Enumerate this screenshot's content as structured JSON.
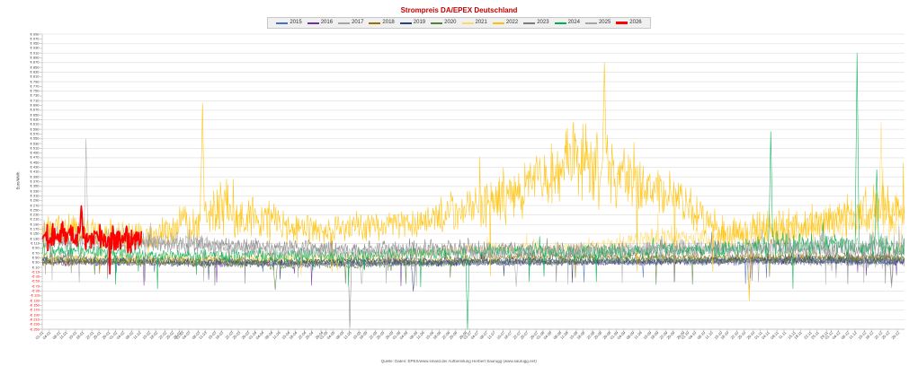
{
  "footer": {
    "source": "Quelle: Daten: EPEX/www.smard.de/ Aufbereitung Herbert Saurugg (www.saurugg.net)"
  },
  "chart_data": {
    "type": "line",
    "title": "Strompreis DA/EPEX Deutschland",
    "xlabel": "",
    "ylabel": "Euro/MWh",
    "ylim": [
      -250,
      990
    ],
    "ytick_step": 20,
    "gridline_step": 40,
    "grid": true,
    "legend_position": "top",
    "currency_prefix": "€ ",
    "positive_tick_color": "#404040",
    "negative_tick_color": "#ff0000",
    "x_labels": [
      "01.01",
      "04.01",
      "08.01",
      "11.01",
      "15.01",
      "18.01",
      "22.01",
      "25.01",
      "29.01",
      "01.02",
      "04.02",
      "08.02",
      "11.02",
      "15.02",
      "18.02",
      "22.02",
      "25.02",
      "28.02",
      "01.03",
      "04.03",
      "08.03",
      "11.03",
      "15.03",
      "18.03",
      "22.03",
      "25.03",
      "29.03",
      "01.04",
      "04.04",
      "08.04",
      "11.04",
      "15.04",
      "18.04",
      "22.04",
      "25.04",
      "29.04",
      "01.05",
      "04.05",
      "08.05",
      "11.05",
      "15.05",
      "18.05",
      "22.05",
      "25.05",
      "29.05",
      "01.06",
      "04.06",
      "08.06",
      "11.06",
      "15.06",
      "18.06",
      "22.06",
      "25.06",
      "29.06",
      "01.07",
      "04.07",
      "08.07",
      "11.07",
      "15.07",
      "18.07",
      "22.07",
      "25.07",
      "29.07",
      "01.08",
      "04.08",
      "08.08",
      "11.08",
      "15.08",
      "18.08",
      "22.08",
      "25.08",
      "29.08",
      "01.09",
      "04.09",
      "08.09",
      "11.09",
      "15.09",
      "18.09",
      "22.09",
      "25.09",
      "29.09",
      "01.10",
      "04.10",
      "08.10",
      "11.10",
      "15.10",
      "18.10",
      "22.10",
      "25.10",
      "29.10",
      "01.11",
      "04.11",
      "08.11",
      "11.11",
      "15.11",
      "18.11",
      "22.11",
      "25.11",
      "29.11",
      "01.12",
      "04.12",
      "08.12",
      "11.12",
      "15.12",
      "18.12",
      "22.12",
      "25.12",
      "29.12"
    ],
    "series": [
      {
        "name": "2015",
        "color": "#4472c4",
        "width": 0.55,
        "start": 0,
        "end": 1,
        "monthly_avg": [
          33,
          30,
          29,
          27,
          26,
          28,
          30,
          31,
          33,
          37,
          41,
          34
        ],
        "monthly_amp": [
          18,
          16,
          15,
          14,
          14,
          15,
          16,
          16,
          18,
          22,
          25,
          20
        ],
        "neg_prob": 0.004,
        "neg_depth": 60,
        "spikes": []
      },
      {
        "name": "2016",
        "color": "#7030a0",
        "width": 0.55,
        "start": 0,
        "end": 1,
        "monthly_avg": [
          29,
          25,
          24,
          23,
          25,
          27,
          29,
          29,
          32,
          36,
          41,
          37
        ],
        "monthly_amp": [
          17,
          15,
          14,
          13,
          14,
          15,
          15,
          15,
          17,
          21,
          25,
          23
        ],
        "neg_prob": 0.004,
        "neg_depth": 70,
        "spikes": []
      },
      {
        "name": "2017",
        "color": "#a5a5a5",
        "width": 0.55,
        "start": 0,
        "end": 1,
        "monthly_avg": [
          41,
          37,
          33,
          30,
          29,
          31,
          33,
          32,
          34,
          36,
          40,
          32
        ],
        "monthly_amp": [
          26,
          20,
          18,
          16,
          15,
          16,
          17,
          17,
          19,
          24,
          28,
          30
        ],
        "neg_prob": 0.004,
        "neg_depth": 60,
        "spikes": [
          {
            "x": 0.82,
            "v": -83
          },
          {
            "x": 0.985,
            "v": -76
          }
        ]
      },
      {
        "name": "2018",
        "color": "#997300",
        "width": 0.55,
        "start": 0,
        "end": 1,
        "monthly_avg": [
          33,
          38,
          40,
          36,
          38,
          43,
          51,
          56,
          54,
          53,
          56,
          51
        ],
        "monthly_amp": [
          20,
          22,
          20,
          18,
          18,
          20,
          22,
          22,
          22,
          24,
          26,
          24
        ],
        "neg_prob": 0.003,
        "neg_depth": 40,
        "spikes": []
      },
      {
        "name": "2019",
        "color": "#264478",
        "width": 0.55,
        "start": 0,
        "end": 1,
        "monthly_avg": [
          46,
          43,
          36,
          34,
          37,
          33,
          39,
          37,
          36,
          39,
          43,
          34
        ],
        "monthly_amp": [
          25,
          22,
          20,
          18,
          20,
          22,
          20,
          18,
          18,
          20,
          24,
          22
        ],
        "neg_prob": 0.004,
        "neg_depth": 60,
        "spikes": [
          {
            "x": 0.43,
            "v": -90
          }
        ]
      },
      {
        "name": "2020",
        "color": "#538135",
        "width": 0.55,
        "start": 0,
        "end": 1,
        "monthly_avg": [
          39,
          31,
          26,
          19,
          19,
          27,
          34,
          37,
          43,
          37,
          41,
          45
        ],
        "monthly_amp": [
          22,
          20,
          22,
          24,
          20,
          18,
          18,
          20,
          22,
          22,
          24,
          26
        ],
        "neg_prob": 0.005,
        "neg_depth": 70,
        "spikes": [
          {
            "x": 0.27,
            "v": -84
          }
        ]
      },
      {
        "name": "2021",
        "color": "#ffd966",
        "width": 0.55,
        "start": 0,
        "end": 1,
        "monthly_avg": [
          53,
          49,
          48,
          53,
          54,
          75,
          89,
          91,
          129,
          139,
          167,
          222
        ],
        "monthly_amp": [
          26,
          25,
          22,
          24,
          24,
          30,
          36,
          36,
          56,
          62,
          72,
          112
        ],
        "neg_prob": 0.001,
        "neg_depth": 30,
        "spikes": [
          {
            "x": 0.973,
            "v": 620
          },
          {
            "x": 0.995,
            "v": 60
          }
        ]
      },
      {
        "name": "2022",
        "color": "#ffc000",
        "width": 0.6,
        "start": 0,
        "end": 1,
        "monthly_avg": [
          168,
          129,
          253,
          166,
          179,
          219,
          316,
          466,
          347,
          153,
          178,
          252
        ],
        "monthly_amp": [
          92,
          72,
          162,
          72,
          72,
          92,
          132,
          202,
          152,
          92,
          92,
          122
        ],
        "neg_prob": 0.001,
        "neg_depth": 40,
        "spikes": [
          {
            "x": 0.186,
            "v": 700
          },
          {
            "x": 0.652,
            "v": 870
          },
          {
            "x": 0.82,
            "v": -130
          }
        ]
      },
      {
        "name": "2023",
        "color": "#7b7b7b",
        "width": 0.55,
        "start": 0,
        "end": 1,
        "monthly_avg": [
          118,
          110,
          100,
          95,
          88,
          95,
          81,
          79,
          86,
          89,
          93,
          71
        ],
        "monthly_amp": [
          46,
          40,
          40,
          36,
          36,
          46,
          52,
          40,
          40,
          40,
          46,
          52
        ],
        "neg_prob": 0.006,
        "neg_depth": 70,
        "spikes": [
          {
            "x": 0.357,
            "v": -245
          },
          {
            "x": 0.985,
            "v": -60
          }
        ]
      },
      {
        "name": "2024",
        "color": "#00b050",
        "width": 0.6,
        "start": 0,
        "end": 1,
        "monthly_avg": [
          79,
          63,
          61,
          56,
          61,
          71,
          76,
          73,
          81,
          86,
          106,
          96
        ],
        "monthly_amp": [
          36,
          30,
          30,
          36,
          36,
          30,
          36,
          36,
          41,
          46,
          62,
          56
        ],
        "neg_prob": 0.007,
        "neg_depth": 80,
        "spikes": [
          {
            "x": 0.493,
            "v": -250
          },
          {
            "x": 0.845,
            "v": 580
          },
          {
            "x": 0.945,
            "v": 910
          },
          {
            "x": 0.968,
            "v": 420
          }
        ]
      },
      {
        "name": "2025",
        "color": "#a6a6a6",
        "width": 0.55,
        "start": 0,
        "end": 1,
        "monthly_avg": [
          131,
          129,
          96,
          76,
          71,
          73,
          79,
          76,
          83,
          86,
          96,
          101
        ],
        "monthly_amp": [
          62,
          56,
          46,
          41,
          41,
          41,
          41,
          41,
          46,
          46,
          56,
          62
        ],
        "neg_prob": 0.007,
        "neg_depth": 80,
        "spikes": [
          {
            "x": 0.051,
            "v": 550
          },
          {
            "x": 0.37,
            "v": -60
          },
          {
            "x": 0.55,
            "v": -70
          }
        ]
      },
      {
        "name": "2026",
        "color": "#ff0000",
        "width": 1.7,
        "start": 0,
        "end": 0.115,
        "monthly_avg": [
          138,
          126,
          120,
          120,
          120,
          120,
          120,
          120,
          120,
          120,
          120,
          120
        ],
        "monthly_amp": [
          66,
          60,
          60,
          60,
          60,
          60,
          60,
          60,
          60,
          60,
          60,
          60
        ],
        "neg_prob": 0.002,
        "neg_depth": 30,
        "spikes": [
          {
            "x": 0.045,
            "v": 268
          }
        ]
      }
    ]
  }
}
